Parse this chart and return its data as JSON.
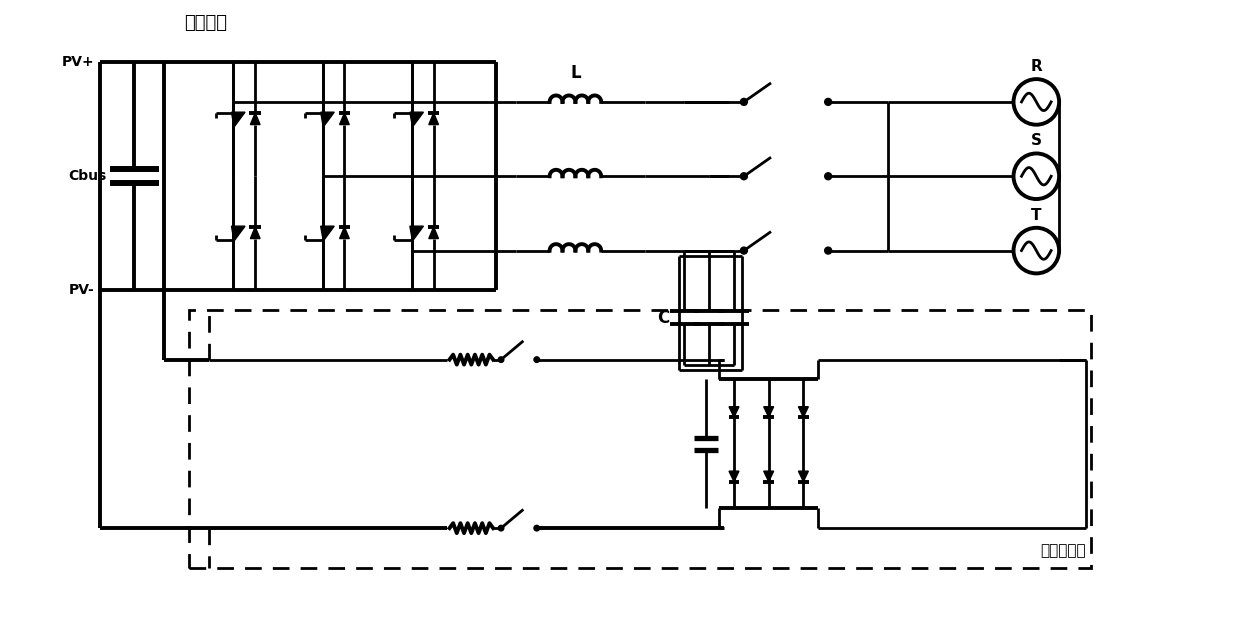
{
  "bg_color": "#ffffff",
  "line_color": "#000000",
  "lw": 2.0,
  "lw_thick": 2.8,
  "fig_width": 12.4,
  "fig_height": 6.35,
  "labels": {
    "dc_bus": "直流母线",
    "pv_plus": "PV+",
    "pv_minus": "PV-",
    "cbus": "Cbus",
    "L": "L",
    "C": "C",
    "R": "R",
    "S": "S",
    "T": "T",
    "precharge": "预充电电路"
  }
}
